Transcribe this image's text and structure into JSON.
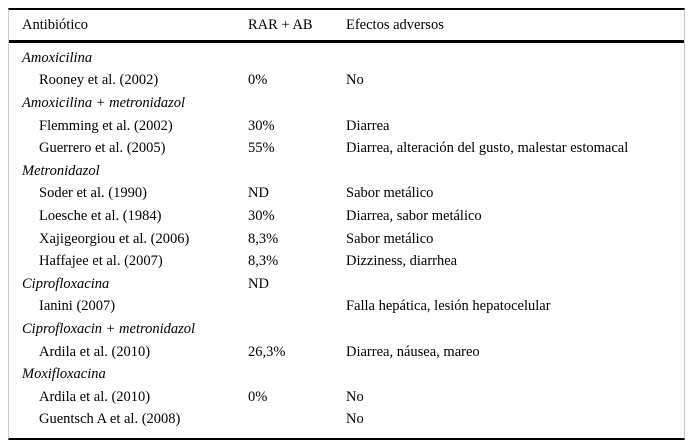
{
  "table": {
    "columns": {
      "antibiotic": "Antibiótico",
      "rar": "RAR + AB",
      "efectos": "Efectos adversos"
    },
    "rows": [
      {
        "type": "group",
        "label": "Amoxicilina",
        "rar": "",
        "efectos": ""
      },
      {
        "type": "study",
        "label": "Rooney et al. (2002)",
        "rar": "0%",
        "efectos": "No"
      },
      {
        "type": "group",
        "label": "Amoxicilina + metronidazol",
        "rar": "",
        "efectos": ""
      },
      {
        "type": "study",
        "label": "Flemming et al. (2002)",
        "rar": "30%",
        "efectos": "Diarrea"
      },
      {
        "type": "study",
        "label": "Guerrero et al. (2005)",
        "rar": "55%",
        "efectos": "Diarrea, alteración del gusto, malestar estomacal"
      },
      {
        "type": "group",
        "label": "Metronidazol",
        "rar": "",
        "efectos": ""
      },
      {
        "type": "study",
        "label": "Soder et al. (1990)",
        "rar": "ND",
        "efectos": "Sabor metálico"
      },
      {
        "type": "study",
        "label": "Loesche et al. (1984)",
        "rar": "30%",
        "efectos": "Diarrea, sabor metálico"
      },
      {
        "type": "study",
        "label": "Xajigeorgiou et al. (2006)",
        "rar": "8,3%",
        "efectos": "Sabor metálico"
      },
      {
        "type": "study",
        "label": "Haffajee et al. (2007)",
        "rar": "8,3%",
        "efectos": "Dizziness, diarrhea"
      },
      {
        "type": "group",
        "label": "Ciprofloxacina",
        "rar": "ND",
        "efectos": ""
      },
      {
        "type": "study",
        "label": "Ianini (2007)",
        "rar": "",
        "efectos": "Falla hepática, lesión hepatocelular"
      },
      {
        "type": "group",
        "label": "Ciprofloxacin + metronidazol",
        "rar": "",
        "efectos": ""
      },
      {
        "type": "study",
        "label": "Ardila et al. (2010)",
        "rar": "26,3%",
        "efectos": "Diarrea, náusea, mareo"
      },
      {
        "type": "group",
        "label": "Moxifloxacina",
        "rar": "",
        "efectos": ""
      },
      {
        "type": "study",
        "label": "Ardila et al. (2010)",
        "rar": "0%",
        "efectos": "No"
      },
      {
        "type": "study",
        "label": "Guentsch A et al. (2008)",
        "rar": "",
        "efectos": "No"
      }
    ]
  }
}
